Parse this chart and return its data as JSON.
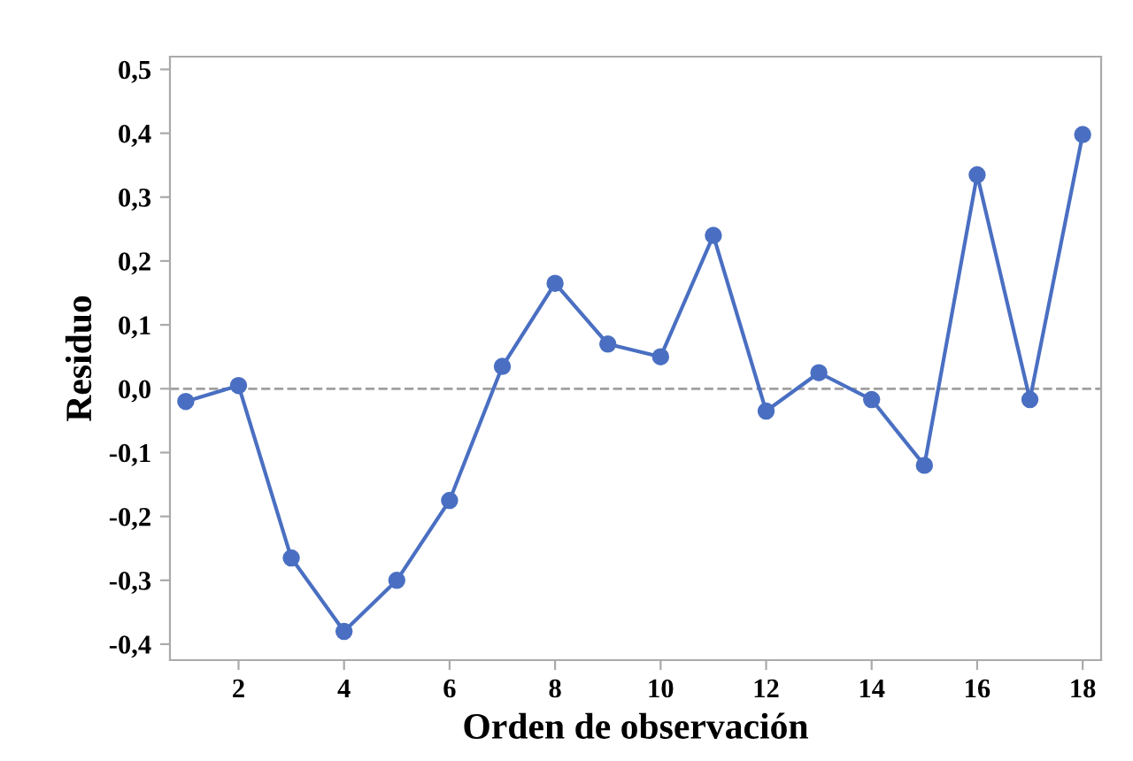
{
  "chart_data": {
    "type": "line",
    "xlabel": "Orden de observación",
    "ylabel": "Residuo",
    "x": [
      1,
      2,
      3,
      4,
      5,
      6,
      7,
      8,
      9,
      10,
      11,
      12,
      13,
      14,
      15,
      16,
      17,
      18
    ],
    "series": [
      {
        "color": "#4a6fc2",
        "values": [
          -0.02,
          0.005,
          -0.265,
          -0.38,
          -0.3,
          -0.175,
          0.035,
          0.165,
          0.07,
          0.05,
          0.24,
          -0.035,
          0.025,
          -0.017,
          -0.12,
          0.335,
          -0.017,
          0.398
        ]
      }
    ],
    "xlim": [
      0.7,
      18.35
    ],
    "xticks": [
      2,
      4,
      6,
      8,
      10,
      12,
      14,
      16,
      18
    ],
    "ylim": [
      -0.425,
      0.52
    ],
    "yticks": [
      {
        "value": -0.4,
        "label": "-0,4"
      },
      {
        "value": -0.3,
        "label": "-0,3"
      },
      {
        "value": -0.2,
        "label": "-0,2"
      },
      {
        "value": -0.1,
        "label": "-0,1"
      },
      {
        "value": 0,
        "label": "0,0"
      },
      {
        "value": 0.1,
        "label": "0,1"
      },
      {
        "value": 0.2,
        "label": "0,2"
      },
      {
        "value": 0.3,
        "label": "0,3"
      },
      {
        "value": 0.4,
        "label": "0,4"
      },
      {
        "value": 0.5,
        "label": "0,5"
      }
    ],
    "ref_lines": [
      {
        "axis": "y",
        "value": 0,
        "color": "#a0a0a0",
        "line_style": "dashed"
      }
    ],
    "marker": "circle",
    "line_style": "solid",
    "grid": false,
    "legend": false
  }
}
